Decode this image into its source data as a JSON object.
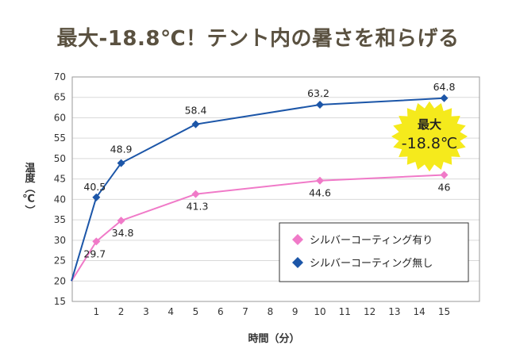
{
  "title": "最大-18.8℃！テント内の暑さを和らげる",
  "chart_data": {
    "type": "line",
    "title": "最大-18.8℃！テント内の暑さを和らげる",
    "xlabel": "時間（分）",
    "ylabel": "温度（℃）",
    "ylim": [
      15,
      70
    ],
    "yticks": [
      15,
      20,
      25,
      30,
      35,
      40,
      45,
      50,
      55,
      60,
      65,
      70
    ],
    "xticks": [
      1,
      2,
      3,
      4,
      5,
      6,
      7,
      8,
      9,
      10,
      11,
      12,
      13,
      14,
      15
    ],
    "xlim": [
      0,
      15
    ],
    "grid": "horizontal",
    "legend_position": "bottom-right",
    "series": [
      {
        "name": "シルバーコーティング有り",
        "color": "#f07ac8",
        "points": [
          [
            0,
            20
          ],
          [
            1,
            29.7
          ],
          [
            2,
            34.8
          ],
          [
            5,
            41.3
          ],
          [
            10,
            44.6
          ],
          [
            15,
            46
          ]
        ],
        "labels": [
          "",
          "29.7",
          "34.8",
          "41.3",
          "44.6",
          "46"
        ]
      },
      {
        "name": "シルバーコーティング無し",
        "color": "#1c56a8",
        "points": [
          [
            0,
            20
          ],
          [
            1,
            40.5
          ],
          [
            2,
            48.9
          ],
          [
            5,
            58.4
          ],
          [
            10,
            63.2
          ],
          [
            15,
            64.8
          ]
        ],
        "labels": [
          "",
          "40.5",
          "48.9",
          "58.4",
          "63.2",
          "64.8"
        ]
      }
    ],
    "annotation": {
      "line1": "最大",
      "line2": "-18.8℃",
      "color": "#f5ea1c"
    }
  }
}
